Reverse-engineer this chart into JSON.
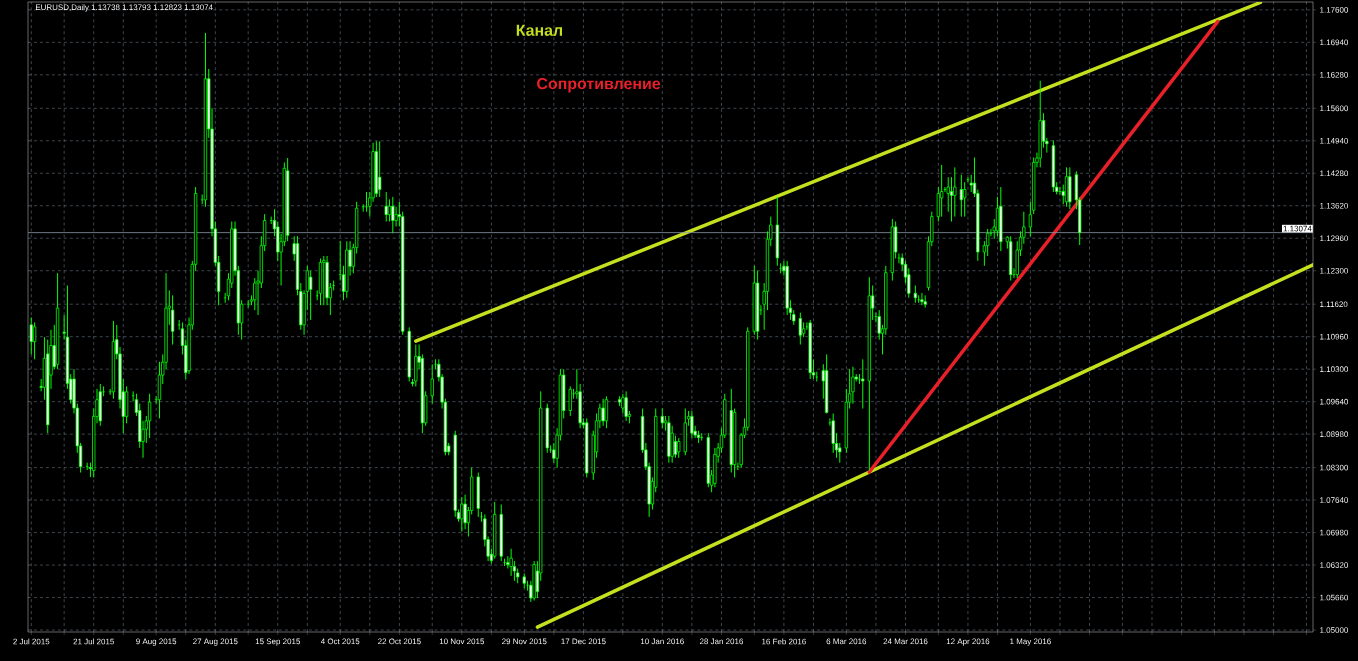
{
  "chart_data": {
    "type": "candlestick",
    "title": "EURUSD,Daily  1.13738 1.13793 1.12823 1.13074",
    "color": "#00ff00",
    "grid": true,
    "xlim": [
      "2015-07-01",
      "2016-07-26"
    ],
    "ylim": [
      1.0496,
      1.1776
    ],
    "xticks": [
      {
        "value": "2015-07-02",
        "label": "2 Jul 2015"
      },
      {
        "value": "2015-07-12",
        "label": null
      },
      {
        "value": "2015-07-21",
        "label": "21 Jul 2015"
      },
      {
        "value": "2015-07-30",
        "label": null
      },
      {
        "value": "2015-08-09",
        "label": "9 Aug 2015"
      },
      {
        "value": "2015-08-18",
        "label": null
      },
      {
        "value": "2015-08-27",
        "label": "27 Aug 2015"
      },
      {
        "value": "2015-09-06",
        "label": null
      },
      {
        "value": "2015-09-15",
        "label": "15 Sep 2015"
      },
      {
        "value": "2015-09-24",
        "label": null
      },
      {
        "value": "2015-10-04",
        "label": "4 Oct 2015"
      },
      {
        "value": "2015-10-13",
        "label": null
      },
      {
        "value": "2015-10-22",
        "label": "22 Oct 2015"
      },
      {
        "value": "2015-11-01",
        "label": null
      },
      {
        "value": "2015-11-10",
        "label": "10 Nov 2015"
      },
      {
        "value": "2015-11-19",
        "label": null
      },
      {
        "value": "2015-11-29",
        "label": "29 Nov 2015"
      },
      {
        "value": "2015-12-08",
        "label": null
      },
      {
        "value": "2015-12-17",
        "label": "17 Dec 2015"
      },
      {
        "value": "2015-12-29",
        "label": null
      },
      {
        "value": "2016-01-10",
        "label": "10 Jan 2016"
      },
      {
        "value": "2016-01-19",
        "label": null
      },
      {
        "value": "2016-01-28",
        "label": "28 Jan 2016"
      },
      {
        "value": "2016-02-07",
        "label": null
      },
      {
        "value": "2016-02-16",
        "label": "16 Feb 2016"
      },
      {
        "value": "2016-02-25",
        "label": null
      },
      {
        "value": "2016-03-06",
        "label": "6 Mar 2016"
      },
      {
        "value": "2016-03-15",
        "label": null
      },
      {
        "value": "2016-03-24",
        "label": "24 Mar 2016"
      },
      {
        "value": "2016-04-03",
        "label": null
      },
      {
        "value": "2016-04-12",
        "label": "12 Apr 2016"
      },
      {
        "value": "2016-04-21",
        "label": null
      },
      {
        "value": "2016-05-01",
        "label": "1 May 2016"
      },
      {
        "value": "2016-05-10",
        "label": null
      },
      {
        "value": "2016-05-19",
        "label": null
      },
      {
        "value": "2016-05-29",
        "label": null
      },
      {
        "value": "2016-06-07",
        "label": null
      },
      {
        "value": "2016-06-16",
        "label": null
      },
      {
        "value": "2016-06-26",
        "label": null
      },
      {
        "value": "2016-07-05",
        "label": null
      },
      {
        "value": "2016-07-14",
        "label": null
      },
      {
        "value": "2016-07-24",
        "label": null
      }
    ],
    "yticks": [
      {
        "value": 1.05,
        "label": "1.05000"
      },
      {
        "value": 1.0566,
        "label": "1.05660"
      },
      {
        "value": 1.0632,
        "label": "1.06320"
      },
      {
        "value": 1.0698,
        "label": "1.06980"
      },
      {
        "value": 1.0764,
        "label": "1.07640"
      },
      {
        "value": 1.083,
        "label": "1.08300"
      },
      {
        "value": 1.0898,
        "label": "1.08980"
      },
      {
        "value": 1.0964,
        "label": "1.09640"
      },
      {
        "value": 1.103,
        "label": "1.10300"
      },
      {
        "value": 1.1096,
        "label": "1.10960"
      },
      {
        "value": 1.1162,
        "label": "1.11620"
      },
      {
        "value": 1.123,
        "label": "1.12300"
      },
      {
        "value": 1.1296,
        "label": "1.12960"
      },
      {
        "value": 1.1362,
        "label": "1.13620"
      },
      {
        "value": 1.1428,
        "label": "1.14280"
      },
      {
        "value": 1.1494,
        "label": "1.14940"
      },
      {
        "value": 1.156,
        "label": "1.15600"
      },
      {
        "value": 1.1628,
        "label": "1.16280"
      },
      {
        "value": 1.1694,
        "label": "1.16940"
      },
      {
        "value": 1.176,
        "label": "1.17600"
      }
    ],
    "ref_lines": [
      {
        "axis": "y",
        "value": 1.13074,
        "label": "1.13074",
        "color": "#8a99a8"
      }
    ],
    "series": [
      {
        "name": "Канал",
        "type": "line",
        "color": "#c5e01e",
        "x": [
          "2015-10-27",
          "2016-07-10"
        ],
        "values": [
          1.1087,
          1.1775
        ]
      },
      {
        "type": "line",
        "color": "#c5e01e",
        "x": [
          "2015-12-03",
          "2016-07-26"
        ],
        "values": [
          1.0506,
          1.1242
        ]
      },
      {
        "name": "Сопротивление",
        "type": "line",
        "color": "#e8202a",
        "x": [
          "2016-03-13",
          "2016-06-27"
        ],
        "values": [
          1.0821,
          1.1736
        ]
      }
    ],
    "x": [
      "2015-07-02",
      "2015-07-03",
      "2015-07-05",
      "2015-07-06",
      "2015-07-07",
      "2015-07-08",
      "2015-07-09",
      "2015-07-10",
      "2015-07-12",
      "2015-07-13",
      "2015-07-14",
      "2015-07-15",
      "2015-07-16",
      "2015-07-17",
      "2015-07-19",
      "2015-07-20",
      "2015-07-21",
      "2015-07-22",
      "2015-07-23",
      "2015-07-24",
      "2015-07-26",
      "2015-07-27",
      "2015-07-28",
      "2015-07-29",
      "2015-07-30",
      "2015-07-31",
      "2015-08-02",
      "2015-08-03",
      "2015-08-04",
      "2015-08-05",
      "2015-08-06",
      "2015-08-07",
      "2015-08-09",
      "2015-08-10",
      "2015-08-11",
      "2015-08-12",
      "2015-08-13",
      "2015-08-14",
      "2015-08-16",
      "2015-08-17",
      "2015-08-18",
      "2015-08-19",
      "2015-08-20",
      "2015-08-21",
      "2015-08-23",
      "2015-08-24",
      "2015-08-25",
      "2015-08-26",
      "2015-08-27",
      "2015-08-28",
      "2015-08-30",
      "2015-08-31",
      "2015-09-01",
      "2015-09-02",
      "2015-09-03",
      "2015-09-04",
      "2015-09-06",
      "2015-09-07",
      "2015-09-08",
      "2015-09-09",
      "2015-09-10",
      "2015-09-11",
      "2015-09-13",
      "2015-09-14",
      "2015-09-15",
      "2015-09-16",
      "2015-09-17",
      "2015-09-18",
      "2015-09-20",
      "2015-09-21",
      "2015-09-22",
      "2015-09-23",
      "2015-09-24",
      "2015-09-25",
      "2015-09-27",
      "2015-09-28",
      "2015-09-29",
      "2015-09-30",
      "2015-10-01",
      "2015-10-02",
      "2015-10-04",
      "2015-10-05",
      "2015-10-06",
      "2015-10-07",
      "2015-10-08",
      "2015-10-09",
      "2015-10-11",
      "2015-10-12",
      "2015-10-13",
      "2015-10-14",
      "2015-10-15",
      "2015-10-16",
      "2015-10-18",
      "2015-10-19",
      "2015-10-20",
      "2015-10-21",
      "2015-10-22",
      "2015-10-23",
      "2015-10-25",
      "2015-10-26",
      "2015-10-27",
      "2015-10-28",
      "2015-10-29",
      "2015-10-30",
      "2015-11-01",
      "2015-11-02",
      "2015-11-03",
      "2015-11-04",
      "2015-11-05",
      "2015-11-06",
      "2015-11-08",
      "2015-11-09",
      "2015-11-10",
      "2015-11-11",
      "2015-11-12",
      "2015-11-13",
      "2015-11-15",
      "2015-11-16",
      "2015-11-17",
      "2015-11-18",
      "2015-11-19",
      "2015-11-20",
      "2015-11-22",
      "2015-11-23",
      "2015-11-24",
      "2015-11-25",
      "2015-11-26",
      "2015-11-27",
      "2015-11-29",
      "2015-11-30",
      "2015-12-01",
      "2015-12-02",
      "2015-12-03",
      "2015-12-04",
      "2015-12-06",
      "2015-12-07",
      "2015-12-08",
      "2015-12-09",
      "2015-12-10",
      "2015-12-11",
      "2015-12-13",
      "2015-12-14",
      "2015-12-15",
      "2015-12-16",
      "2015-12-17",
      "2015-12-18",
      "2015-12-20",
      "2015-12-21",
      "2015-12-22",
      "2015-12-23",
      "2015-12-24",
      "2015-12-28",
      "2015-12-29",
      "2015-12-30",
      "2015-12-31",
      "2016-01-04",
      "2016-01-05",
      "2016-01-06",
      "2016-01-07",
      "2016-01-08",
      "2016-01-10",
      "2016-01-11",
      "2016-01-12",
      "2016-01-13",
      "2016-01-14",
      "2016-01-15",
      "2016-01-17",
      "2016-01-18",
      "2016-01-19",
      "2016-01-20",
      "2016-01-21",
      "2016-01-22",
      "2016-01-24",
      "2016-01-25",
      "2016-01-26",
      "2016-01-27",
      "2016-01-28",
      "2016-01-29",
      "2016-01-31",
      "2016-02-01",
      "2016-02-02",
      "2016-02-03",
      "2016-02-04",
      "2016-02-05",
      "2016-02-07",
      "2016-02-08",
      "2016-02-09",
      "2016-02-10",
      "2016-02-11",
      "2016-02-12",
      "2016-02-14",
      "2016-02-15",
      "2016-02-16",
      "2016-02-17",
      "2016-02-18",
      "2016-02-19",
      "2016-02-21",
      "2016-02-22",
      "2016-02-23",
      "2016-02-24",
      "2016-02-25",
      "2016-02-26",
      "2016-02-28",
      "2016-02-29",
      "2016-03-01",
      "2016-03-02",
      "2016-03-03",
      "2016-03-04",
      "2016-03-06",
      "2016-03-07",
      "2016-03-08",
      "2016-03-09",
      "2016-03-10",
      "2016-03-11",
      "2016-03-13",
      "2016-03-14",
      "2016-03-15",
      "2016-03-16",
      "2016-03-17",
      "2016-03-18",
      "2016-03-20",
      "2016-03-21",
      "2016-03-22",
      "2016-03-23",
      "2016-03-24",
      "2016-03-25",
      "2016-03-27",
      "2016-03-28",
      "2016-03-29",
      "2016-03-30",
      "2016-03-31",
      "2016-04-01",
      "2016-04-03",
      "2016-04-04",
      "2016-04-05",
      "2016-04-06",
      "2016-04-07",
      "2016-04-08",
      "2016-04-10",
      "2016-04-11",
      "2016-04-12",
      "2016-04-13",
      "2016-04-14",
      "2016-04-15",
      "2016-04-17",
      "2016-04-18",
      "2016-04-19",
      "2016-04-20",
      "2016-04-21",
      "2016-04-22",
      "2016-04-24",
      "2016-04-25",
      "2016-04-26",
      "2016-04-27",
      "2016-04-28",
      "2016-04-29",
      "2016-05-01",
      "2016-05-02",
      "2016-05-03",
      "2016-05-04",
      "2016-05-05",
      "2016-05-06",
      "2016-05-08",
      "2016-05-09",
      "2016-05-10",
      "2016-05-11",
      "2016-05-12",
      "2016-05-13",
      "2016-05-15",
      "2016-05-16"
    ],
    "ohlc": [
      [
        1.112,
        1.1135,
        1.106,
        1.1086
      ],
      [
        1.1086,
        1.1125,
        1.105,
        1.1116
      ],
      [
        1.0995,
        1.101,
        1.0985,
        1.0993
      ],
      [
        1.0993,
        1.1095,
        1.0968,
        1.1052
      ],
      [
        1.1061,
        1.109,
        1.09,
        1.0917
      ],
      [
        1.1018,
        1.111,
        1.099,
        1.1078
      ],
      [
        1.1078,
        1.112,
        1.103,
        1.1035
      ],
      [
        1.104,
        1.1225,
        1.103,
        1.1154
      ],
      [
        1.1105,
        1.114,
        1.109,
        1.1103
      ],
      [
        1.1095,
        1.12,
        1.099,
        1.1001
      ],
      [
        1.101,
        1.102,
        1.096,
        1.0968
      ],
      [
        1.101,
        1.103,
        1.094,
        1.0951
      ],
      [
        1.0951,
        1.096,
        1.086,
        1.0874
      ],
      [
        1.0874,
        1.088,
        1.082,
        1.0832
      ],
      [
        1.0832,
        1.084,
        1.0825,
        1.0832
      ],
      [
        1.083,
        1.084,
        1.0811,
        1.0828
      ],
      [
        1.0824,
        1.095,
        1.081,
        1.0934
      ],
      [
        1.0934,
        1.099,
        1.092,
        1.0968
      ],
      [
        1.0984,
        1.1,
        1.0915,
        1.0925
      ],
      [
        1.0984,
        1.0995,
        1.0975,
        1.0984
      ],
      [
        1.0984,
        1.099,
        1.0978,
        1.0984
      ],
      [
        1.0984,
        1.1128,
        1.097,
        1.1086
      ],
      [
        1.109,
        1.112,
        1.105,
        1.1061
      ],
      [
        1.1061,
        1.1075,
        1.095,
        1.0968
      ],
      [
        1.0984,
        1.101,
        1.09,
        1.0934
      ],
      [
        1.0934,
        1.0995,
        1.092,
        1.0984
      ],
      [
        1.0976,
        1.0985,
        1.0965,
        1.0976
      ],
      [
        1.0968,
        1.098,
        1.0935,
        1.0942
      ],
      [
        1.0946,
        1.096,
        1.087,
        1.0883
      ],
      [
        1.0883,
        1.0925,
        1.085,
        1.0908
      ],
      [
        1.0908,
        1.0935,
        1.088,
        1.0925
      ],
      [
        1.0925,
        1.098,
        1.089,
        1.0963
      ],
      [
        1.0968,
        1.0975,
        1.096,
        1.0968
      ],
      [
        1.0968,
        1.1045,
        1.093,
        1.1018
      ],
      [
        1.1018,
        1.106,
        1.1,
        1.1044
      ],
      [
        1.1044,
        1.1225,
        1.103,
        1.1154
      ],
      [
        1.1154,
        1.119,
        1.112,
        1.1158
      ],
      [
        1.115,
        1.118,
        1.108,
        1.1107
      ],
      [
        1.112,
        1.113,
        1.111,
        1.112
      ],
      [
        1.1112,
        1.1125,
        1.106,
        1.1078
      ],
      [
        1.1078,
        1.109,
        1.101,
        1.1023
      ],
      [
        1.1027,
        1.1135,
        1.102,
        1.112
      ],
      [
        1.112,
        1.125,
        1.111,
        1.1243
      ],
      [
        1.1243,
        1.14,
        1.123,
        1.1387
      ],
      [
        1.1374,
        1.1385,
        1.1365,
        1.1374
      ],
      [
        1.1374,
        1.1713,
        1.136,
        1.162
      ],
      [
        1.162,
        1.164,
        1.15,
        1.1518
      ],
      [
        1.1518,
        1.156,
        1.13,
        1.1315
      ],
      [
        1.1315,
        1.133,
        1.124,
        1.1247
      ],
      [
        1.1247,
        1.126,
        1.116,
        1.1188
      ],
      [
        1.1175,
        1.1185,
        1.1165,
        1.1175
      ],
      [
        1.1179,
        1.1225,
        1.117,
        1.1213
      ],
      [
        1.1205,
        1.133,
        1.1195,
        1.1315
      ],
      [
        1.1315,
        1.133,
        1.122,
        1.123
      ],
      [
        1.123,
        1.124,
        1.11,
        1.1124
      ],
      [
        1.1124,
        1.117,
        1.109,
        1.1162
      ],
      [
        1.1162,
        1.117,
        1.1155,
        1.1162
      ],
      [
        1.1168,
        1.118,
        1.116,
        1.1171
      ],
      [
        1.1171,
        1.1215,
        1.115,
        1.1205
      ],
      [
        1.1205,
        1.123,
        1.114,
        1.1209
      ],
      [
        1.1205,
        1.13,
        1.1195,
        1.1281
      ],
      [
        1.1281,
        1.1345,
        1.127,
        1.1332
      ],
      [
        1.1332,
        1.134,
        1.1325,
        1.1332
      ],
      [
        1.1332,
        1.1355,
        1.13,
        1.1315
      ],
      [
        1.1319,
        1.133,
        1.125,
        1.1268
      ],
      [
        1.1268,
        1.1305,
        1.12,
        1.1289
      ],
      [
        1.1289,
        1.145,
        1.128,
        1.1438
      ],
      [
        1.1433,
        1.1459,
        1.129,
        1.1302
      ],
      [
        1.1285,
        1.13,
        1.125,
        1.1264
      ],
      [
        1.1285,
        1.13,
        1.118,
        1.1192
      ],
      [
        1.1188,
        1.1205,
        1.111,
        1.112
      ],
      [
        1.112,
        1.119,
        1.11,
        1.1184
      ],
      [
        1.1188,
        1.124,
        1.115,
        1.123
      ],
      [
        1.1217,
        1.123,
        1.113,
        1.1192
      ],
      [
        1.1179,
        1.119,
        1.117,
        1.1179
      ],
      [
        1.1184,
        1.1255,
        1.116,
        1.1247
      ],
      [
        1.1247,
        1.126,
        1.116,
        1.1251
      ],
      [
        1.1247,
        1.126,
        1.116,
        1.1175
      ],
      [
        1.1175,
        1.1205,
        1.114,
        1.1196
      ],
      [
        1.12,
        1.121,
        1.119,
        1.12
      ],
      [
        1.1222,
        1.129,
        1.121,
        1.1222
      ],
      [
        1.1222,
        1.124,
        1.117,
        1.1188
      ],
      [
        1.1188,
        1.129,
        1.1175,
        1.1272
      ],
      [
        1.1272,
        1.129,
        1.122,
        1.1239
      ],
      [
        1.1239,
        1.1285,
        1.1225,
        1.1277
      ],
      [
        1.1277,
        1.137,
        1.1265,
        1.1357
      ],
      [
        1.136,
        1.1365,
        1.135,
        1.136
      ],
      [
        1.136,
        1.139,
        1.135,
        1.136
      ],
      [
        1.1361,
        1.139,
        1.134,
        1.1378
      ],
      [
        1.1378,
        1.149,
        1.137,
        1.1472
      ],
      [
        1.1472,
        1.1493,
        1.138,
        1.1387
      ],
      [
        1.142,
        1.1493,
        1.138,
        1.1395
      ],
      [
        1.1361,
        1.139,
        1.133,
        1.1344
      ],
      [
        1.1344,
        1.1375,
        1.133,
        1.1361
      ],
      [
        1.1361,
        1.138,
        1.1306,
        1.1332
      ],
      [
        1.1332,
        1.136,
        1.132,
        1.1344
      ],
      [
        1.1344,
        1.137,
        1.132,
        1.134
      ],
      [
        1.134,
        1.135,
        1.11,
        1.1107
      ],
      [
        1.1107,
        1.1115,
        1.1005,
        1.1014
      ],
      [
        1.1003,
        1.101,
        1.0995,
        1.1001
      ],
      [
        1.1006,
        1.108,
        1.0995,
        1.1056
      ],
      [
        1.1056,
        1.108,
        1.103,
        1.1044
      ],
      [
        1.1052,
        1.106,
        1.09,
        1.0921
      ],
      [
        1.0921,
        1.0985,
        1.0915,
        1.0976
      ],
      [
        1.0976,
        1.104,
        1.096,
        1.101
      ],
      [
        1.104,
        1.105,
        1.103,
        1.104
      ],
      [
        1.104,
        1.105,
        1.1005,
        1.1014
      ],
      [
        1.1014,
        1.102,
        1.095,
        1.0963
      ],
      [
        1.0963,
        1.097,
        1.0855,
        1.0862
      ],
      [
        1.0874,
        1.088,
        1.0855,
        1.0862
      ],
      [
        1.0896,
        1.0905,
        1.073,
        1.0743
      ],
      [
        1.0739,
        1.0745,
        1.072,
        1.0726
      ],
      [
        1.0726,
        1.077,
        1.07,
        1.0756
      ],
      [
        1.0756,
        1.0775,
        1.0705,
        1.0718
      ],
      [
        1.0718,
        1.075,
        1.069,
        1.0743
      ],
      [
        1.0743,
        1.083,
        1.0735,
        1.0811
      ],
      [
        1.0811,
        1.082,
        1.073,
        1.0747
      ],
      [
        1.073,
        1.074,
        1.072,
        1.073
      ],
      [
        1.0726,
        1.0735,
        1.067,
        1.0684
      ],
      [
        1.0684,
        1.069,
        1.064,
        1.065
      ],
      [
        1.0654,
        1.0665,
        1.0635,
        1.0641
      ],
      [
        1.065,
        1.076,
        1.0645,
        1.0735
      ],
      [
        1.0735,
        1.0755,
        1.064,
        1.065
      ],
      [
        1.0637,
        1.0645,
        1.063,
        1.0637
      ],
      [
        1.0637,
        1.065,
        1.0625,
        1.0633
      ],
      [
        1.0629,
        1.0665,
        1.061,
        1.0646
      ],
      [
        1.0629,
        1.064,
        1.06,
        1.062
      ],
      [
        1.0616,
        1.0625,
        1.0595,
        1.0608
      ],
      [
        1.0608,
        1.0615,
        1.0585,
        1.0595
      ],
      [
        1.0591,
        1.06,
        1.058,
        1.0591
      ],
      [
        1.0591,
        1.06,
        1.0557,
        1.0565
      ],
      [
        1.0565,
        1.064,
        1.056,
        1.0633
      ],
      [
        1.062,
        1.064,
        1.0565,
        1.0578
      ],
      [
        1.0616,
        1.0985,
        1.06,
        1.0951
      ],
      [
        1.0951,
        1.096,
        1.086,
        1.087
      ],
      [
        1.0866,
        1.0875,
        1.086,
        1.0866
      ],
      [
        1.0866,
        1.088,
        1.084,
        1.0849
      ],
      [
        1.0849,
        1.091,
        1.083,
        1.0896
      ],
      [
        1.0896,
        1.103,
        1.0885,
        1.1018
      ],
      [
        1.1018,
        1.103,
        1.093,
        1.0946
      ],
      [
        1.0946,
        1.0995,
        1.0935,
        1.0989
      ],
      [
        1.098,
        1.099,
        1.097,
        1.098
      ],
      [
        1.098,
        1.103,
        1.097,
        1.0984
      ],
      [
        1.0984,
        1.1,
        1.091,
        1.0921
      ],
      [
        1.0921,
        1.093,
        1.091,
        1.0917
      ],
      [
        1.0921,
        1.093,
        1.081,
        1.0819
      ],
      [
        1.0819,
        1.0905,
        1.0805,
        1.0896
      ],
      [
        1.0862,
        1.094,
        1.085,
        1.0925
      ],
      [
        1.0925,
        1.096,
        1.091,
        1.0951
      ],
      [
        1.0951,
        1.097,
        1.0915,
        1.0925
      ],
      [
        1.0925,
        1.0975,
        1.091,
        1.0968
      ],
      [
        1.0968,
        1.0975,
        1.0955,
        1.0963
      ],
      [
        1.0951,
        1.098,
        1.094,
        1.0972
      ],
      [
        1.0972,
        1.0985,
        1.0925,
        1.0934
      ],
      [
        1.0934,
        1.0945,
        1.092,
        1.0938
      ],
      [
        1.0934,
        1.095,
        1.086,
        1.0866
      ],
      [
        1.0866,
        1.088,
        1.0825,
        1.0832
      ],
      [
        1.0832,
        1.084,
        1.073,
        1.0756
      ],
      [
        1.0756,
        1.081,
        1.0745,
        1.0802
      ],
      [
        1.079,
        1.095,
        1.078,
        1.0934
      ],
      [
        1.0934,
        1.095,
        1.091,
        1.0921
      ],
      [
        1.0921,
        1.0935,
        1.0905,
        1.0925
      ],
      [
        1.0921,
        1.0935,
        1.084,
        1.0853
      ],
      [
        1.0853,
        1.0915,
        1.084,
        1.09
      ],
      [
        1.0883,
        1.0895,
        1.085,
        1.0857
      ],
      [
        1.0862,
        1.089,
        1.085,
        1.0883
      ],
      [
        1.0862,
        1.095,
        1.0855,
        1.0921
      ],
      [
        1.0929,
        1.0945,
        1.0915,
        1.0934
      ],
      [
        1.0934,
        1.0945,
        1.089,
        1.09
      ],
      [
        1.0904,
        1.0915,
        1.089,
        1.0896
      ],
      [
        1.0896,
        1.0905,
        1.088,
        1.0891
      ],
      [
        1.0891,
        1.09,
        1.0885,
        1.0891
      ],
      [
        1.0891,
        1.09,
        1.079,
        1.0798
      ],
      [
        1.0794,
        1.0825,
        1.078,
        1.0815
      ],
      [
        1.0798,
        1.087,
        1.079,
        1.0857
      ],
      [
        1.0853,
        1.088,
        1.084,
        1.087
      ],
      [
        1.087,
        1.091,
        1.086,
        1.0896
      ],
      [
        1.0896,
        1.098,
        1.089,
        1.0968
      ],
      [
        1.0946,
        1.099,
        1.082,
        1.0836
      ],
      [
        1.0836,
        1.095,
        1.081,
        1.0942
      ],
      [
        1.0832,
        1.084,
        1.0825,
        1.0832
      ],
      [
        1.0836,
        1.09,
        1.083,
        1.0896
      ],
      [
        1.0896,
        1.093,
        1.089,
        1.0912
      ],
      [
        1.0912,
        1.1115,
        1.0905,
        1.1107
      ],
      [
        1.1107,
        1.124,
        1.11,
        1.1205
      ],
      [
        1.1205,
        1.123,
        1.109,
        1.1107
      ],
      [
        1.115,
        1.116,
        1.114,
        1.115
      ],
      [
        1.1162,
        1.1205,
        1.111,
        1.1188
      ],
      [
        1.1188,
        1.131,
        1.115,
        1.1294
      ],
      [
        1.1294,
        1.134,
        1.128,
        1.1323
      ],
      [
        1.1323,
        1.138,
        1.124,
        1.1256
      ],
      [
        1.1234,
        1.1245,
        1.1225,
        1.1234
      ],
      [
        1.1239,
        1.125,
        1.122,
        1.123
      ],
      [
        1.1239,
        1.125,
        1.114,
        1.1154
      ],
      [
        1.1154,
        1.117,
        1.113,
        1.1145
      ],
      [
        1.1141,
        1.115,
        1.112,
        1.1128
      ],
      [
        1.1133,
        1.1145,
        1.108,
        1.1099
      ],
      [
        1.1103,
        1.1125,
        1.1095,
        1.1112
      ],
      [
        1.1116,
        1.1125,
        1.111,
        1.1116
      ],
      [
        1.1124,
        1.113,
        1.101,
        1.1023
      ],
      [
        1.1023,
        1.105,
        1.101,
        1.1018
      ],
      [
        1.1014,
        1.1025,
        1.1005,
        1.1014
      ],
      [
        1.1027,
        1.104,
        1.097,
        1.1006
      ],
      [
        1.1027,
        1.106,
        1.094,
        1.0942
      ],
      [
        1.0921,
        1.093,
        1.0915,
        1.0921
      ],
      [
        1.0925,
        1.094,
        1.086,
        1.0879
      ],
      [
        1.0879,
        1.09,
        1.085,
        1.0866
      ],
      [
        1.087,
        1.088,
        1.084,
        1.0862
      ],
      [
        1.087,
        1.099,
        1.086,
        1.0963
      ],
      [
        1.0963,
        1.103,
        1.095,
        1.098
      ],
      [
        1.0984,
        1.1035,
        1.096,
        1.1014
      ],
      [
        1.1014,
        1.102,
        1.1005,
        1.101
      ],
      [
        1.101,
        1.102,
        1.1,
        1.101
      ],
      [
        1.101,
        1.105,
        1.095,
        1.1006
      ],
      [
        1.1006,
        1.1217,
        1.0824,
        1.1179
      ],
      [
        1.1179,
        1.12,
        1.113,
        1.1154
      ],
      [
        1.1137,
        1.1145,
        1.1125,
        1.1137
      ],
      [
        1.1137,
        1.115,
        1.109,
        1.1103
      ],
      [
        1.1103,
        1.112,
        1.106,
        1.1112
      ],
      [
        1.1112,
        1.124,
        1.11,
        1.1226
      ],
      [
        1.1226,
        1.1335,
        1.121,
        1.1319
      ],
      [
        1.1319,
        1.133,
        1.1255,
        1.1268
      ],
      [
        1.1256,
        1.1265,
        1.1245,
        1.1256
      ],
      [
        1.1256,
        1.1265,
        1.123,
        1.1243
      ],
      [
        1.1243,
        1.125,
        1.1205,
        1.1217
      ],
      [
        1.1222,
        1.1235,
        1.1175,
        1.1184
      ],
      [
        1.1184,
        1.12,
        1.1165,
        1.1175
      ],
      [
        1.1171,
        1.118,
        1.1165,
        1.1171
      ],
      [
        1.1171,
        1.1185,
        1.116,
        1.1167
      ],
      [
        1.1167,
        1.118,
        1.1155,
        1.1162
      ],
      [
        1.1196,
        1.13,
        1.119,
        1.1289
      ],
      [
        1.1289,
        1.135,
        1.128,
        1.134
      ],
      [
        1.134,
        1.14,
        1.133,
        1.1387
      ],
      [
        1.1378,
        1.1445,
        1.134,
        1.1391
      ],
      [
        1.1395,
        1.14,
        1.139,
        1.1395
      ],
      [
        1.1387,
        1.142,
        1.135,
        1.14
      ],
      [
        1.1391,
        1.142,
        1.133,
        1.1383
      ],
      [
        1.1383,
        1.144,
        1.134,
        1.14
      ],
      [
        1.1395,
        1.1425,
        1.134,
        1.1374
      ],
      [
        1.1378,
        1.141,
        1.134,
        1.1395
      ],
      [
        1.1415,
        1.142,
        1.141,
        1.1415
      ],
      [
        1.1408,
        1.1425,
        1.139,
        1.1404
      ],
      [
        1.1408,
        1.146,
        1.138,
        1.1387
      ],
      [
        1.1387,
        1.1395,
        1.125,
        1.1268
      ],
      [
        1.1268,
        1.129,
        1.124,
        1.1281
      ],
      [
        1.1281,
        1.1315,
        1.126,
        1.1306
      ],
      [
        1.1306,
        1.1315,
        1.13,
        1.1306
      ],
      [
        1.1311,
        1.1335,
        1.1295,
        1.1319
      ],
      [
        1.1311,
        1.138,
        1.13,
        1.1357
      ],
      [
        1.1361,
        1.14,
        1.127,
        1.1289
      ],
      [
        1.1289,
        1.13,
        1.1275,
        1.1298
      ],
      [
        1.1289,
        1.13,
        1.121,
        1.1222
      ],
      [
        1.1222,
        1.1235,
        1.1215,
        1.1222
      ],
      [
        1.1222,
        1.129,
        1.1215,
        1.1272
      ],
      [
        1.1272,
        1.131,
        1.126,
        1.1298
      ],
      [
        1.1298,
        1.135,
        1.1285,
        1.1319
      ],
      [
        1.1319,
        1.137,
        1.13,
        1.1344
      ],
      [
        1.1353,
        1.146,
        1.1345,
        1.145
      ],
      [
        1.145,
        1.147,
        1.144,
        1.1459
      ],
      [
        1.1459,
        1.1616,
        1.144,
        1.1535
      ],
      [
        1.1535,
        1.155,
        1.148,
        1.1493
      ],
      [
        1.1493,
        1.15,
        1.147,
        1.1488
      ],
      [
        1.1484,
        1.1495,
        1.139,
        1.14
      ],
      [
        1.14,
        1.141,
        1.1385,
        1.1391
      ],
      [
        1.1391,
        1.14,
        1.1385,
        1.1391
      ],
      [
        1.1391,
        1.1405,
        1.1365,
        1.1383
      ],
      [
        1.137,
        1.144,
        1.136,
        1.1421
      ],
      [
        1.1421,
        1.144,
        1.1355,
        1.137
      ],
      [
        1.1425,
        1.1432,
        1.1355,
        1.1374
      ],
      [
        1.13738,
        1.13793,
        1.12823,
        1.13074
      ]
    ]
  }
}
